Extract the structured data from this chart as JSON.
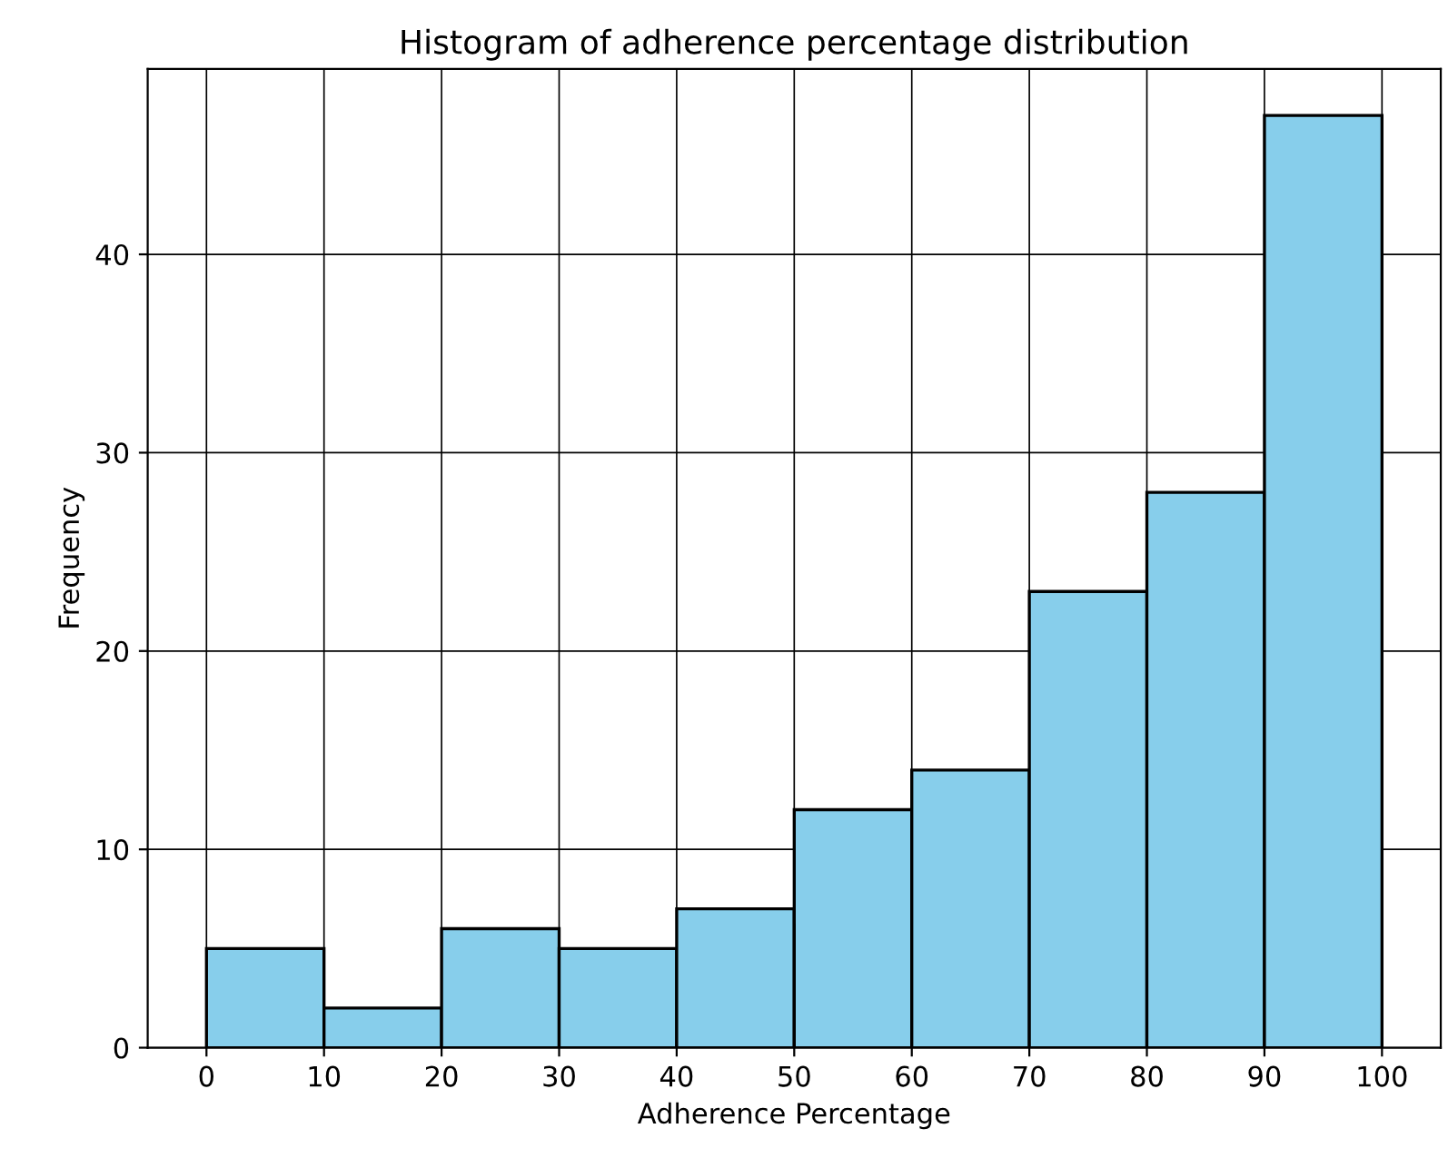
{
  "chart_data": {
    "type": "histogram",
    "title": "Histogram of adherence percentage distribution",
    "xlabel": "Adherence Percentage",
    "ylabel": "Frequency",
    "bins": [
      0,
      10,
      20,
      30,
      40,
      50,
      60,
      70,
      80,
      90,
      100
    ],
    "values": [
      5,
      2,
      6,
      5,
      7,
      12,
      14,
      23,
      28,
      47
    ],
    "color": "#87ceeb",
    "xlim": [
      -5,
      105
    ],
    "ylim": [
      0,
      49.35
    ],
    "xticks": [
      0,
      10,
      20,
      30,
      40,
      50,
      60,
      70,
      80,
      90,
      100
    ],
    "yticks": [
      0,
      10,
      20,
      30,
      40
    ],
    "grid": true
  }
}
